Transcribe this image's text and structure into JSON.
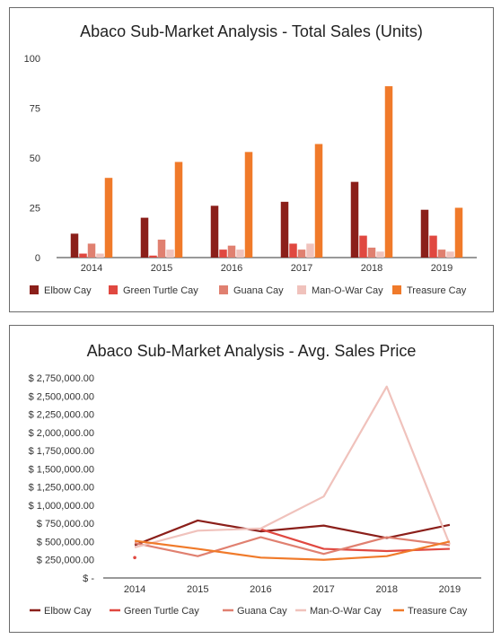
{
  "chart_data": [
    {
      "type": "bar",
      "title": "Abaco Sub-Market Analysis - Total Sales (Units)",
      "xlabel": "",
      "ylabel": "",
      "categories": [
        "2014",
        "2015",
        "2016",
        "2017",
        "2018",
        "2019"
      ],
      "y_ticks": [
        "0",
        "25",
        "50",
        "75",
        "100"
      ],
      "ylim": [
        0,
        100
      ],
      "grid": false,
      "legend_position": "bottom",
      "series": [
        {
          "name": "Elbow Cay",
          "color": "#8b1f1a",
          "values": [
            12,
            20,
            26,
            28,
            38,
            24
          ]
        },
        {
          "name": "Green Turtle Cay",
          "color": "#e04840",
          "values": [
            2,
            1,
            4,
            7,
            11,
            11
          ]
        },
        {
          "name": "Guana Cay",
          "color": "#e08070",
          "values": [
            7,
            9,
            6,
            4,
            5,
            4
          ]
        },
        {
          "name": "Man-O-War Cay",
          "color": "#f0c2bc",
          "values": [
            2,
            4,
            4,
            7,
            3,
            3
          ]
        },
        {
          "name": "Treasure Cay",
          "color": "#f07a2a",
          "values": [
            40,
            48,
            53,
            57,
            86,
            25
          ]
        }
      ]
    },
    {
      "type": "line",
      "title": "Abaco Sub-Market Analysis - Avg. Sales Price",
      "xlabel": "",
      "ylabel": "",
      "categories": [
        "2014",
        "2015",
        "2016",
        "2017",
        "2018",
        "2019"
      ],
      "y_ticks": [
        "$ -",
        "$ 250,000.00",
        "$ 500,000.00",
        "$ 750,000.00",
        "$ 1,000,000.00",
        "$ 1,250,000.00",
        "$ 1,500,000.00",
        "$ 1,750,000.00",
        "$ 2,000,000.00",
        "$ 2,250,000.00",
        "$ 2,500,000.00",
        "$ 2,750,000.00"
      ],
      "ylim": [
        0,
        2750000
      ],
      "grid": false,
      "legend_position": "bottom",
      "series": [
        {
          "name": "Elbow Cay",
          "color": "#8b1f1a",
          "values": [
            450000,
            790000,
            640000,
            720000,
            550000,
            730000
          ]
        },
        {
          "name": "Green Turtle Cay",
          "color": "#e04840",
          "values": [
            280000,
            null,
            670000,
            400000,
            370000,
            400000
          ]
        },
        {
          "name": "Guana Cay",
          "color": "#e08070",
          "values": [
            480000,
            300000,
            560000,
            330000,
            560000,
            450000
          ]
        },
        {
          "name": "Man-O-War Cay",
          "color": "#f0c2bc",
          "values": [
            420000,
            650000,
            680000,
            1120000,
            2630000,
            460000
          ]
        },
        {
          "name": "Treasure Cay",
          "color": "#f07a2a",
          "values": [
            510000,
            400000,
            280000,
            250000,
            300000,
            500000
          ]
        }
      ]
    }
  ]
}
